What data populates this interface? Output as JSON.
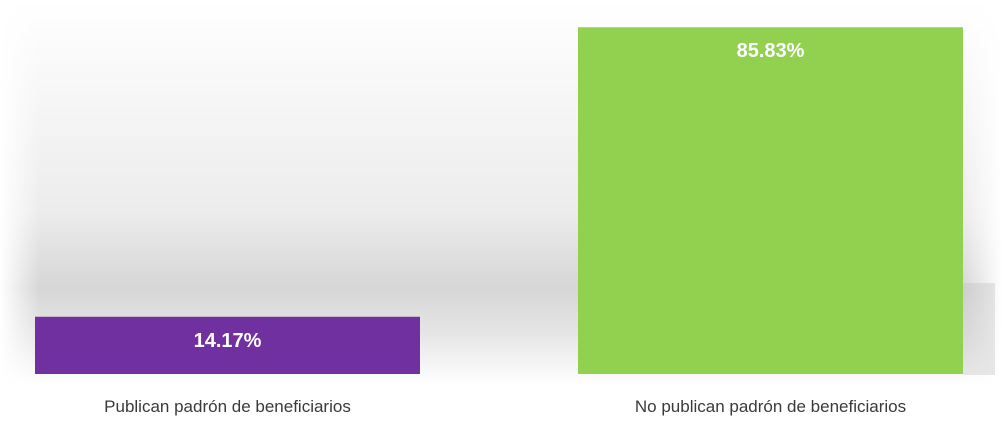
{
  "chart_data": {
    "type": "bar",
    "categories": [
      "Publican padrón de beneficiarios",
      "No publican padrón de beneficiarios"
    ],
    "values": [
      14.17,
      85.83
    ],
    "data_labels": [
      "14.17%",
      "85.83%"
    ],
    "ylim": [
      0,
      100
    ],
    "colors": [
      "#7030A0",
      "#92D050"
    ],
    "title": "",
    "xlabel": "",
    "ylabel": "",
    "grid": false,
    "legend": "none",
    "background": "gray gradient stage"
  }
}
